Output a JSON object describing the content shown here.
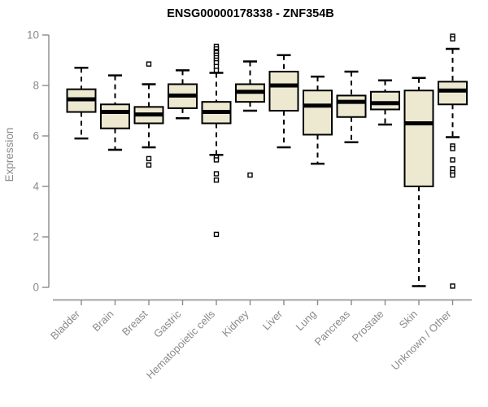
{
  "title": "ENSG00000178338 - ZNF354B",
  "colors": {
    "background": "#ffffff",
    "box_fill": "#EDE8D0",
    "box_border": "#000000",
    "median": "#000000",
    "whisker": "#000000",
    "outlier_stroke": "#000000",
    "outlier_fill": "#ffffff",
    "axis": "#8a8a8a",
    "title_color": "#000000"
  },
  "chart_data": {
    "type": "boxplot",
    "title": "ENSG00000178338 - ZNF354B",
    "xlabel": "",
    "ylabel": "Expression",
    "ylim": [
      0,
      10
    ],
    "yticks": [
      0,
      2,
      4,
      6,
      8,
      10
    ],
    "grid": false,
    "legend": false,
    "categories": [
      "Bladder",
      "Brain",
      "Breast",
      "Gastric",
      "Hematopoietic cells",
      "Kidney",
      "Liver",
      "Lung",
      "Pancreas",
      "Prostate",
      "Skin",
      "Unknown / Other"
    ],
    "series": [
      {
        "name": "Bladder",
        "whislo": 5.9,
        "q1": 6.95,
        "med": 7.45,
        "q3": 7.85,
        "whishi": 8.7,
        "outliers": []
      },
      {
        "name": "Brain",
        "whislo": 5.45,
        "q1": 6.3,
        "med": 6.95,
        "q3": 7.25,
        "whishi": 8.4,
        "outliers": []
      },
      {
        "name": "Breast",
        "whislo": 5.55,
        "q1": 6.5,
        "med": 6.85,
        "q3": 7.15,
        "whishi": 8.05,
        "outliers": [
          8.85,
          5.1,
          4.85
        ]
      },
      {
        "name": "Gastric",
        "whislo": 6.7,
        "q1": 7.1,
        "med": 7.6,
        "q3": 8.05,
        "whishi": 8.6,
        "outliers": []
      },
      {
        "name": "Hematopoietic cells",
        "whislo": 5.25,
        "q1": 6.5,
        "med": 6.95,
        "q3": 7.35,
        "whishi": 8.5,
        "outliers": [
          9.55,
          9.45,
          9.35,
          9.3,
          9.2,
          9.1,
          9.0,
          8.9,
          8.75,
          8.6,
          5.15,
          5.05,
          4.5,
          4.25,
          2.1
        ]
      },
      {
        "name": "Kidney",
        "whislo": 7.0,
        "q1": 7.35,
        "med": 7.75,
        "q3": 8.05,
        "whishi": 8.95,
        "outliers": [
          4.45
        ]
      },
      {
        "name": "Liver",
        "whislo": 5.55,
        "q1": 7.0,
        "med": 8.0,
        "q3": 8.55,
        "whishi": 9.2,
        "outliers": []
      },
      {
        "name": "Lung",
        "whislo": 4.9,
        "q1": 6.05,
        "med": 7.2,
        "q3": 7.8,
        "whishi": 8.35,
        "outliers": []
      },
      {
        "name": "Pancreas",
        "whislo": 5.75,
        "q1": 6.75,
        "med": 7.35,
        "q3": 7.6,
        "whishi": 8.55,
        "outliers": []
      },
      {
        "name": "Prostate",
        "whislo": 6.45,
        "q1": 7.05,
        "med": 7.3,
        "q3": 7.75,
        "whishi": 8.2,
        "outliers": []
      },
      {
        "name": "Skin",
        "whislo": 0.05,
        "q1": 4.0,
        "med": 6.5,
        "q3": 7.8,
        "whishi": 8.3,
        "outliers": []
      },
      {
        "name": "Unknown / Other",
        "whislo": 5.95,
        "q1": 7.25,
        "med": 7.8,
        "q3": 8.15,
        "whishi": 9.45,
        "outliers": [
          9.95,
          9.85,
          5.6,
          5.5,
          5.05,
          4.7,
          4.55,
          4.45,
          0.05
        ]
      }
    ]
  }
}
